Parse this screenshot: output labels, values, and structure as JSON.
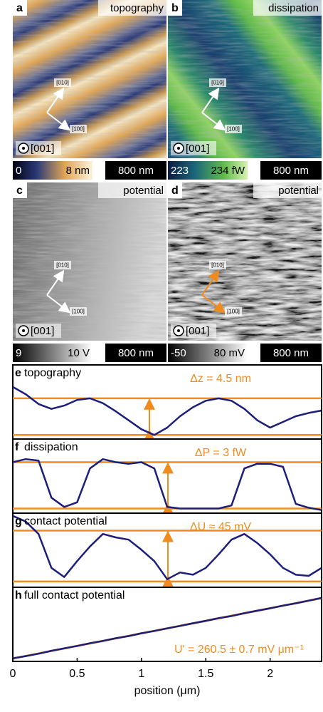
{
  "panels": [
    {
      "letter": "a",
      "label": "topography",
      "dir1": "[010]",
      "dir2": "[100]",
      "dir3": "[001]",
      "colorbar": {
        "min": "0",
        "max": "8 nm"
      },
      "scalebar": "800 nm"
    },
    {
      "letter": "b",
      "label": "dissipation",
      "dir1": "[010]",
      "dir2": "[100]",
      "dir3": "[001]",
      "colorbar": {
        "min": "223",
        "max": "234 fW"
      },
      "scalebar": "800 nm"
    },
    {
      "letter": "c",
      "label": "potential",
      "dir1": "[010]",
      "dir2": "[100]",
      "dir3": "[001]",
      "colorbar": {
        "min": "9",
        "max": "10 V"
      },
      "scalebar": "800 nm"
    },
    {
      "letter": "d",
      "label": "potential",
      "dir1": "[010]",
      "dir2": "[100]",
      "dir3": "[001]",
      "colorbar": {
        "min": "-50",
        "max": "80 mV"
      },
      "scalebar": "800 nm"
    }
  ],
  "chart_data": [
    {
      "type": "line",
      "letter": "e",
      "title": "topography",
      "annotation": "Δz = 4.5 nm",
      "color": "#1b1f7a",
      "ref_color": "#f08c1e",
      "x": [
        0,
        0.1,
        0.2,
        0.3,
        0.4,
        0.5,
        0.6,
        0.7,
        0.8,
        0.9,
        1,
        1.1,
        1.2,
        1.3,
        1.4,
        1.5,
        1.6,
        1.7,
        1.8,
        1.9,
        2,
        2.1,
        2.2,
        2.3,
        2.4
      ],
      "values": [
        5.9,
        5.0,
        3.8,
        3.2,
        3.6,
        4.3,
        4.5,
        3.9,
        2.9,
        1.8,
        0.7,
        0,
        0.9,
        2.3,
        3.4,
        4.2,
        4.5,
        4.2,
        3.2,
        1.8,
        0.9,
        1.6,
        2.3,
        2.7,
        3.0
      ],
      "hlines": [
        0,
        4.5
      ],
      "xlim": [
        0,
        2.4
      ],
      "ylim": [
        -0.5,
        8.6
      ]
    },
    {
      "type": "line",
      "letter": "f",
      "title": "dissipation",
      "annotation": "ΔP = 3 fW",
      "color": "#1b1f7a",
      "ref_color": "#f08c1e",
      "x": [
        0,
        0.1,
        0.2,
        0.3,
        0.4,
        0.5,
        0.6,
        0.7,
        0.8,
        0.9,
        1,
        1.1,
        1.2,
        1.3,
        1.4,
        1.5,
        1.6,
        1.7,
        1.8,
        1.9,
        2,
        2.1,
        2.2,
        2.3,
        2.4
      ],
      "values": [
        3.0,
        3.2,
        3.1,
        0.7,
        0.1,
        0.4,
        2.6,
        3.2,
        3.0,
        2.9,
        3.0,
        2.6,
        0.1,
        0,
        0,
        0,
        0,
        0.2,
        2.6,
        2.9,
        2.9,
        2.7,
        0.3,
        0.05,
        -0.1
      ],
      "hlines": [
        0,
        3
      ],
      "xlim": [
        0,
        2.4
      ],
      "ylim": [
        -0.3,
        4.5
      ]
    },
    {
      "type": "line",
      "letter": "g",
      "title": "contact potential",
      "annotation": "ΔU ≈ 45 mV",
      "color": "#1b1f7a",
      "ref_color": "#f08c1e",
      "x": [
        0,
        0.1,
        0.2,
        0.3,
        0.4,
        0.5,
        0.6,
        0.7,
        0.8,
        0.9,
        1,
        1.1,
        1.2,
        1.3,
        1.4,
        1.5,
        1.6,
        1.7,
        1.8,
        1.9,
        2,
        2.1,
        2.2,
        2.3,
        2.4
      ],
      "values": [
        58,
        53,
        42,
        12,
        4,
        18,
        31,
        42,
        39,
        37,
        28,
        18,
        2,
        8,
        6,
        12,
        24,
        37,
        42,
        34,
        24,
        12,
        6,
        5,
        12
      ],
      "hlines": [
        0,
        45
      ],
      "xlim": [
        0,
        2.4
      ],
      "ylim": [
        -5.1,
        60.4
      ]
    },
    {
      "type": "line",
      "letter": "h",
      "title": "full contact potential",
      "annotation": "U' = 260.5 ± 0.7 mV μm⁻¹",
      "color": "#1b1f7a",
      "ref_color": "#f08c1e",
      "x": [
        0,
        0.1,
        0.2,
        0.3,
        0.4,
        0.5,
        0.6,
        0.7,
        0.8,
        0.9,
        1,
        1.1,
        1.2,
        1.3,
        1.4,
        1.5,
        1.6,
        1.7,
        1.8,
        1.9,
        2,
        2.1,
        2.2,
        2.3,
        2.4
      ],
      "values": [
        2,
        25,
        50,
        80,
        105,
        130,
        158,
        182,
        210,
        232,
        262,
        285,
        312,
        338,
        365,
        390,
        418,
        440,
        470,
        495,
        520,
        548,
        572,
        600,
        628
      ],
      "fit_line": [
        0,
        625
      ],
      "xlim": [
        0,
        2.4
      ],
      "ylim": [
        -30,
        738
      ],
      "xticks": [
        0,
        0.5,
        1,
        1.5,
        2
      ],
      "xlabel": "position (μm)"
    }
  ]
}
